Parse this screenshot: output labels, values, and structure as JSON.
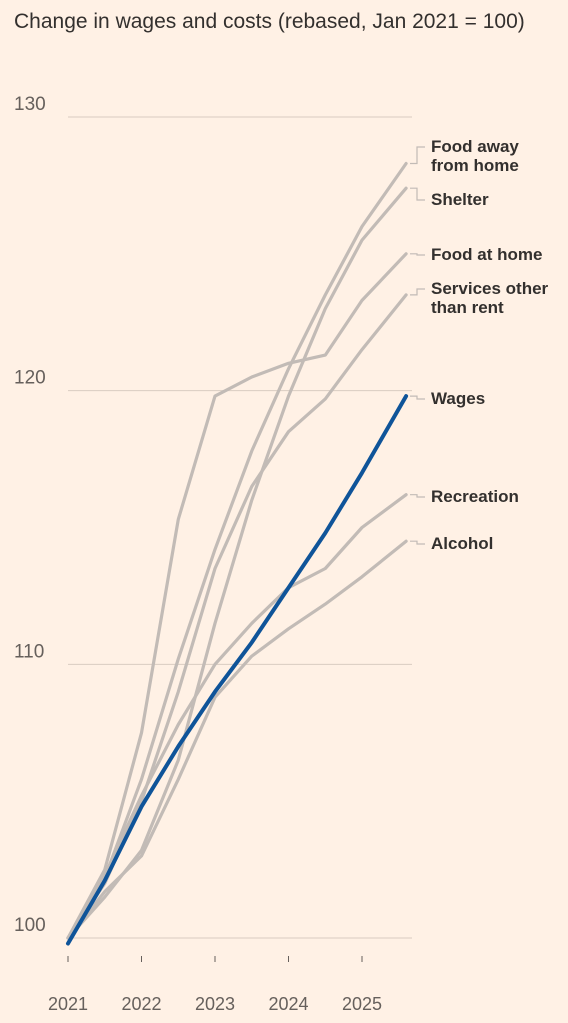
{
  "chart_data": {
    "type": "line",
    "title": "Change in wages and costs (rebased, Jan 2021 = 100)",
    "xlabel": "",
    "ylabel": "",
    "ylim": [
      99,
      131
    ],
    "xlim": [
      2021,
      2025.8
    ],
    "yticks": [
      100,
      110,
      120,
      130
    ],
    "xticks": [
      "2021",
      "2022",
      "2023",
      "2024",
      "2025"
    ],
    "grid": true,
    "colors": {
      "highlight": "#0F5499",
      "other": "#C2BBB6",
      "background": "#FFF1E5"
    },
    "x": [
      2021,
      2021.5,
      2022,
      2022.5,
      2023,
      2023.5,
      2024,
      2024.5,
      2025,
      2025.6
    ],
    "series": [
      {
        "name": "Food away from home",
        "label_lines": [
          "Food away",
          "from home"
        ],
        "values": [
          100,
          102.2,
          105.8,
          110.2,
          114.2,
          117.8,
          120.8,
          123.5,
          126.0,
          128.3
        ]
      },
      {
        "name": "Shelter",
        "label_lines": [
          "Shelter"
        ],
        "values": [
          100,
          101.5,
          103.2,
          106.5,
          111.5,
          116.0,
          119.8,
          123.0,
          125.5,
          127.4
        ]
      },
      {
        "name": "Food at home",
        "label_lines": [
          "Food at home"
        ],
        "values": [
          100,
          102.5,
          107.5,
          115.3,
          119.8,
          120.5,
          121.0,
          121.3,
          123.3,
          125.0
        ]
      },
      {
        "name": "Services other than rent",
        "label_lines": [
          "Services other",
          "than rent"
        ],
        "values": [
          100,
          102.0,
          105.0,
          109.0,
          113.5,
          116.5,
          118.5,
          119.7,
          121.5,
          123.5
        ]
      },
      {
        "name": "Wages",
        "label_lines": [
          "Wages"
        ],
        "highlight": true,
        "values": [
          99.8,
          102.1,
          104.8,
          107.0,
          109.0,
          110.8,
          112.8,
          114.8,
          117.0,
          119.8
        ]
      },
      {
        "name": "Recreation",
        "label_lines": [
          "Recreation"
        ],
        "values": [
          100,
          102.3,
          105.2,
          107.8,
          110.0,
          111.5,
          112.8,
          113.5,
          115.0,
          116.2
        ]
      },
      {
        "name": "Alcohol",
        "label_lines": [
          "Alcohol"
        ],
        "values": [
          100,
          101.7,
          103.0,
          105.8,
          108.8,
          110.3,
          111.3,
          112.2,
          113.2,
          114.5
        ]
      }
    ]
  }
}
